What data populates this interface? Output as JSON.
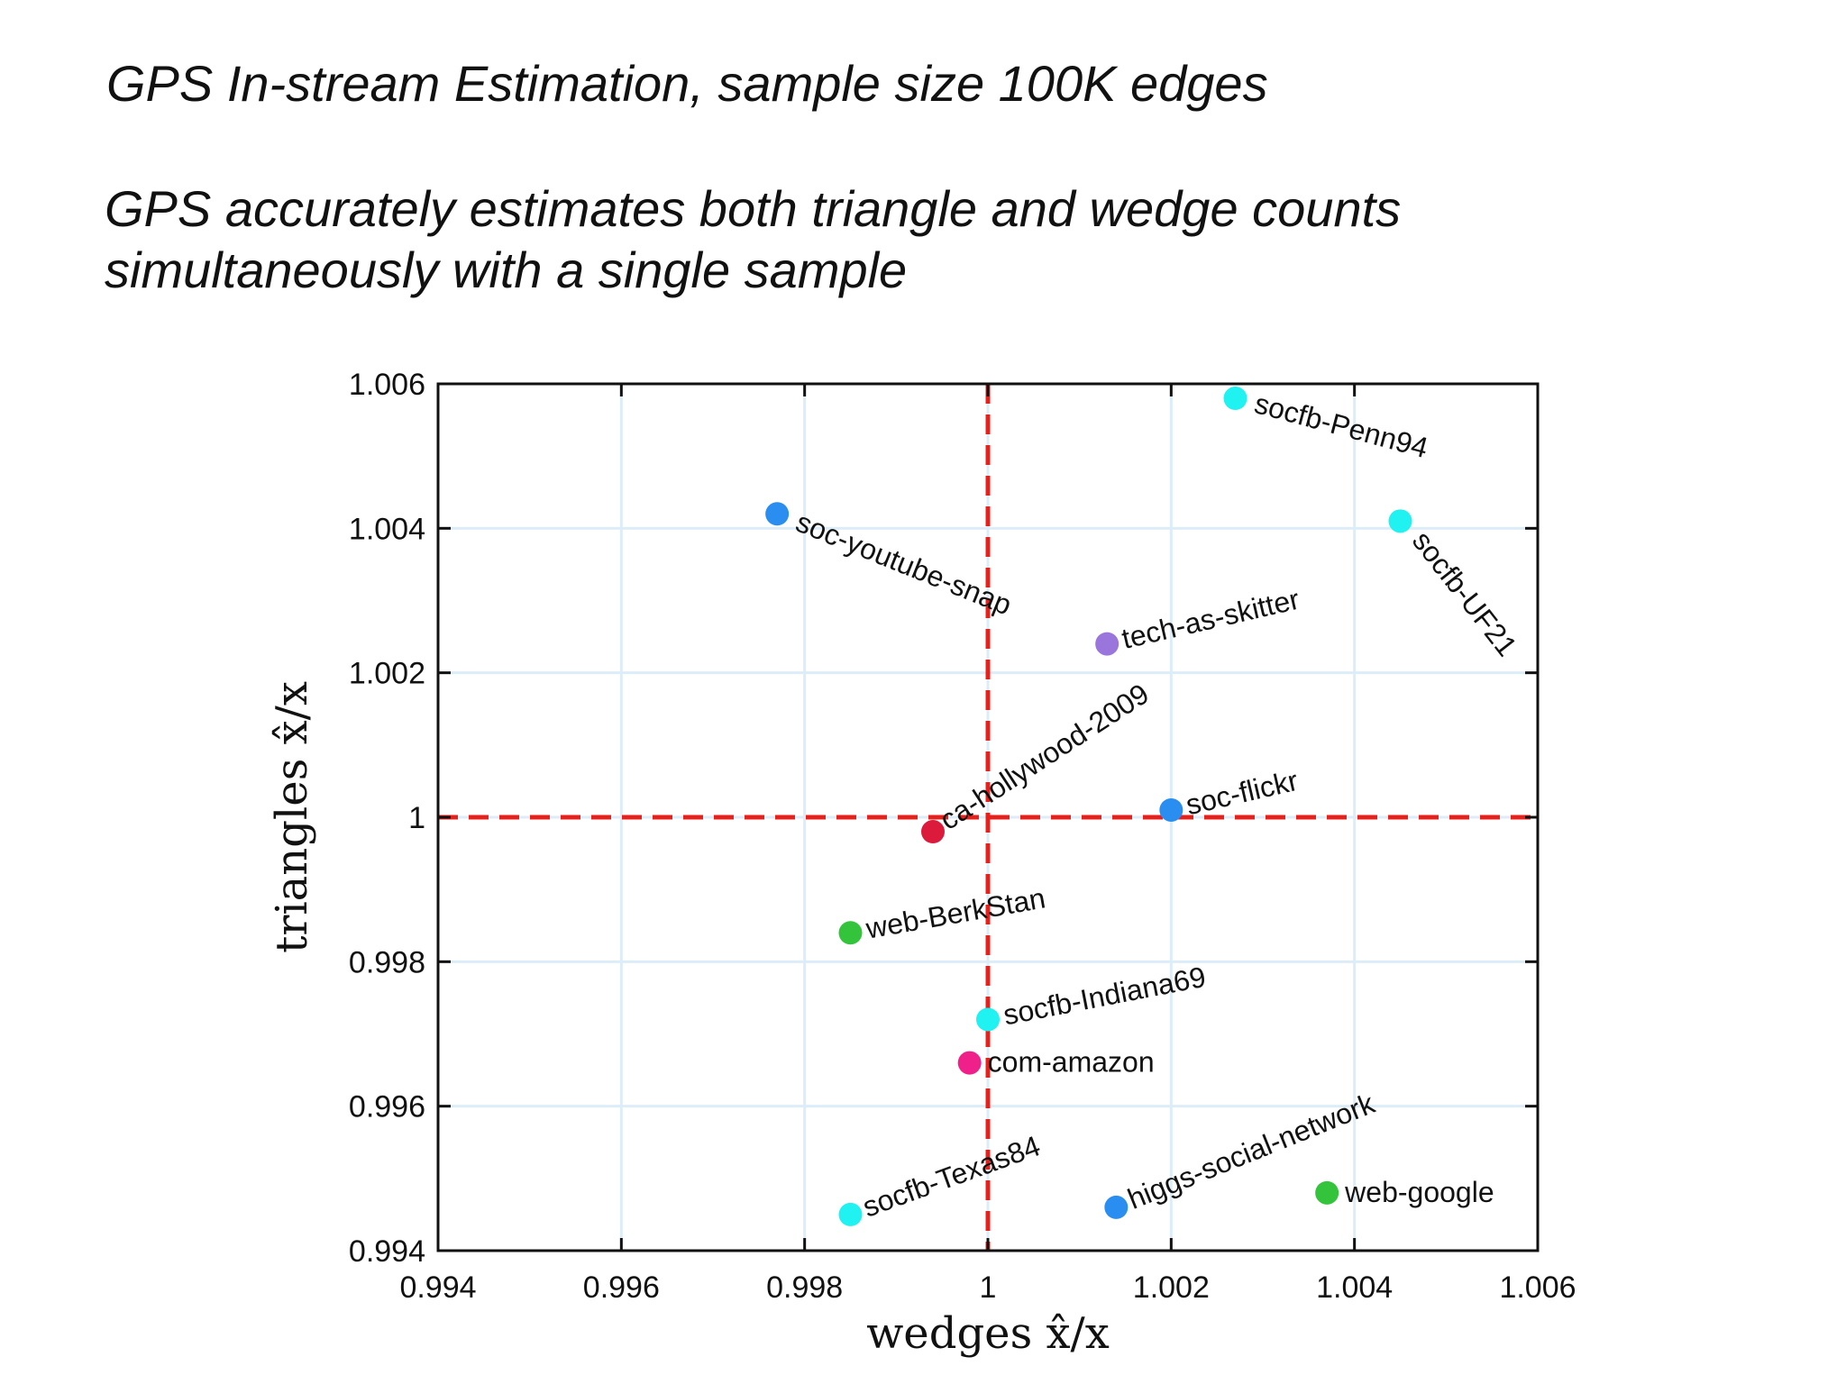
{
  "title": "GPS In-stream Estimation, sample size 100K edges",
  "subtitle_lines": [
    "GPS accurately estimates both triangle and wedge counts",
    "simultaneously with a single sample"
  ],
  "chart_data": {
    "type": "scatter",
    "xlabel": "wedges  x̂/x",
    "ylabel": "triangles  x̂/x",
    "xlim": [
      0.994,
      1.006
    ],
    "ylim": [
      0.994,
      1.006
    ],
    "xticks": [
      0.994,
      0.996,
      0.998,
      1,
      1.002,
      1.004,
      1.006
    ],
    "yticks": [
      0.994,
      0.996,
      0.998,
      1,
      1.002,
      1.004,
      1.006
    ],
    "xtick_labels": [
      "0.994",
      "0.996",
      "0.998",
      "1",
      "1.002",
      "1.004",
      "1.006"
    ],
    "ytick_labels": [
      "0.994",
      "0.996",
      "0.998",
      "1",
      "1.002",
      "1.004",
      "1.006"
    ],
    "grid": true,
    "reference_lines": {
      "x": 1,
      "y": 1,
      "color": "#e8201c",
      "style": "dashed"
    },
    "points": [
      {
        "label": "socfb-Penn94",
        "x": 1.0027,
        "y": 1.0058,
        "color": "#1ff2f0",
        "label_angle": 15
      },
      {
        "label": "soc-youtube-snap",
        "x": 0.9977,
        "y": 1.0042,
        "color": "#2a8ef0",
        "label_angle": 22
      },
      {
        "label": "socfb-UF21",
        "x": 1.0045,
        "y": 1.0041,
        "color": "#1ff2f0",
        "label_angle": 52
      },
      {
        "label": "tech-as-skitter",
        "x": 1.0013,
        "y": 1.0024,
        "color": "#9a76dc",
        "label_angle": -13
      },
      {
        "label": "ca-hollywood-2009",
        "x": 0.9994,
        "y": 0.9998,
        "color": "#dc1a3c",
        "label_angle": -33
      },
      {
        "label": "soc-flickr",
        "x": 1.002,
        "y": 1.0001,
        "color": "#2a8ef0",
        "label_angle": -13
      },
      {
        "label": "web-BerkStan",
        "x": 0.9985,
        "y": 0.9984,
        "color": "#34c43c",
        "label_angle": -10
      },
      {
        "label": "socfb-Indiana69",
        "x": 1.0,
        "y": 0.9972,
        "color": "#1ff2f0",
        "label_angle": -11
      },
      {
        "label": "com-amazon",
        "x": 0.9998,
        "y": 0.9966,
        "color": "#f0208a",
        "label_angle": 0
      },
      {
        "label": "socfb-Texas84",
        "x": 0.9985,
        "y": 0.9945,
        "color": "#1ff2f0",
        "label_angle": -20
      },
      {
        "label": "higgs-social-network",
        "x": 1.0014,
        "y": 0.9946,
        "color": "#2a8ef0",
        "label_angle": -22
      },
      {
        "label": "web-google",
        "x": 1.0037,
        "y": 0.9948,
        "color": "#34c43c",
        "label_angle": 0
      }
    ]
  }
}
